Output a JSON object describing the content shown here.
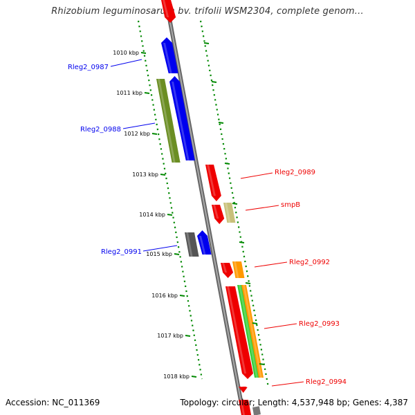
{
  "header": {
    "title": "Rhizobium leguminosarum bv. trifolii WSM2304, complete genom..."
  },
  "footer": {
    "accession": "Accession: NC_011369",
    "topology": "Topology: circular; Length: 4,537,948 bp; Genes: 4,387"
  },
  "colors": {
    "forward_strand": "#0000ee",
    "reverse_strand": "#ee0000",
    "olive": "#6b8e23",
    "tan": "#c8c07a",
    "orange": "#ff9900",
    "green": "#33cc33",
    "dark_gray": "#555555",
    "backbone": "#888888",
    "tick": "#008800"
  },
  "scale": {
    "ticks": [
      "1010 kbp",
      "1011 kbp",
      "1012 kbp",
      "1013 kbp",
      "1014 kbp",
      "1015 kbp",
      "1016 kbp",
      "1017 kbp",
      "1018 kbp"
    ]
  },
  "genes": [
    {
      "label": "Rleg2_0987",
      "strand": "forward",
      "color": "blue"
    },
    {
      "label": "Rleg2_0988",
      "strand": "forward",
      "color": "blue"
    },
    {
      "label": "Rleg2_0989",
      "strand": "reverse",
      "color": "red"
    },
    {
      "label": "smpB",
      "strand": "reverse",
      "color": "red"
    },
    {
      "label": "Rleg2_0991",
      "strand": "forward",
      "color": "blue"
    },
    {
      "label": "Rleg2_0992",
      "strand": "reverse",
      "color": "red"
    },
    {
      "label": "Rleg2_0993",
      "strand": "reverse",
      "color": "red"
    },
    {
      "label": "Rleg2_0994",
      "strand": "reverse",
      "color": "red"
    }
  ]
}
